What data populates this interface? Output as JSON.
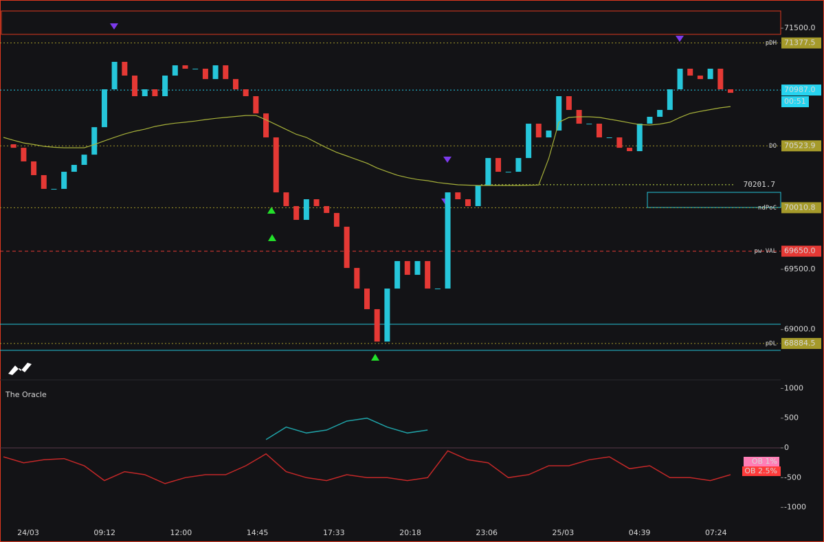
{
  "chart_data": {
    "type": "candlestick",
    "x_labels": [
      "24/03",
      "09:12",
      "12:00",
      "14:45",
      "17:33",
      "20:18",
      "23:06",
      "25/03",
      "04:39",
      "07:24"
    ],
    "ylim": [
      68816,
      71734
    ],
    "yticks": [
      {
        "value": 69000,
        "label": "69000.0"
      },
      {
        "value": 69500,
        "label": "69500.0"
      },
      {
        "value": 71500,
        "label": "71500.0"
      }
    ],
    "series": [
      {
        "color_up": "#26c6da",
        "color_down": "#e53935",
        "values": [
          70537,
          70508,
          70395,
          70281,
          70167,
          70167,
          70309,
          70366,
          70451,
          70679,
          70993,
          71221,
          71107,
          70936,
          70993,
          70936,
          71107,
          71192,
          71164,
          71164,
          71078,
          71192,
          71078,
          70993,
          70936,
          70793,
          70594,
          70138,
          70024,
          69910,
          70081,
          70024,
          69967,
          69853,
          69511,
          69340,
          69169,
          68900,
          69340,
          69568,
          69454,
          69568,
          69340,
          69340,
          70138,
          70081,
          70024,
          70195,
          70423,
          70309,
          70309,
          70423,
          70708,
          70594,
          70651,
          70936,
          70822,
          70708,
          70708,
          70594,
          70594,
          70508,
          70480,
          70708,
          70765,
          70822,
          70993,
          71164,
          71107,
          71078,
          71164,
          70993,
          70964
        ]
      },
      {
        "color": "#a8b23a",
        "values": [
          70594,
          70570,
          70548,
          70535,
          70520,
          70512,
          70508,
          70508,
          70508,
          70535,
          70565,
          70595,
          70622,
          70645,
          70662,
          70685,
          70700,
          70712,
          70720,
          70730,
          70742,
          70752,
          70760,
          70768,
          70776,
          70776,
          70740,
          70700,
          70660,
          70620,
          70594,
          70550,
          70508,
          70470,
          70440,
          70410,
          70380,
          70340,
          70310,
          70280,
          70260,
          70245,
          70235,
          70220,
          70210,
          70201,
          70198,
          70195,
          70195,
          70195,
          70195,
          70195,
          70197,
          70199,
          70420,
          70720,
          70760,
          70765,
          70765,
          70760,
          70745,
          70731,
          70715,
          70700,
          70697,
          70705,
          70720,
          70760,
          70793,
          70810,
          70825,
          70840,
          70850
        ]
      }
    ],
    "levels": [
      {
        "name": "pDH",
        "value": 71377.5,
        "color": "#a59a2a"
      },
      {
        "value": 70987,
        "value_label": "70987.0",
        "countdown": "00:51",
        "color": "#26d4f0"
      },
      {
        "name": "DO",
        "value": 70523.9,
        "color": "#a59a2a"
      },
      {
        "value": 70201.7,
        "color": "#c6e04a",
        "plain": true
      },
      {
        "name": "ndPoC",
        "value": 70010.8,
        "color": "#a59a2a"
      },
      {
        "name": "pw VAL",
        "value": 69650,
        "value_label": "69650.0",
        "color": "#e53935"
      },
      {
        "name": "pDL",
        "value": 68884.5,
        "color": "#a59a2a"
      }
    ],
    "oscillator": {
      "title": "The Oracle",
      "ylim": [
        -1247,
        1120
      ],
      "yticks": [
        1000,
        500,
        0,
        -500,
        -1000
      ],
      "badges": [
        {
          "label": "OB 1%",
          "color": "#ff7eb6"
        },
        {
          "label": "OB 2.5%",
          "color": "#ff3b3b"
        }
      ],
      "series": [
        {
          "color": "#1fa3a8",
          "values": [
            null,
            null,
            null,
            null,
            null,
            null,
            null,
            null,
            null,
            null,
            null,
            null,
            null,
            140,
            350,
            250,
            300,
            450,
            500,
            350,
            250,
            300,
            null,
            null,
            null,
            null,
            null,
            null,
            null,
            null,
            null,
            null,
            null,
            null,
            null,
            null,
            null
          ]
        },
        {
          "color": "#c62828",
          "values": [
            -150,
            -250,
            -200,
            -180,
            -300,
            -550,
            -400,
            -450,
            -600,
            -500,
            -450,
            -450,
            -300,
            -100,
            -400,
            -500,
            -550,
            -450,
            -500,
            -500,
            -550,
            -500,
            -50,
            -200,
            -250,
            -500,
            -450,
            -300,
            -300,
            -200,
            -150,
            -350,
            -300,
            -500,
            -500,
            -550,
            -450
          ]
        }
      ]
    }
  }
}
